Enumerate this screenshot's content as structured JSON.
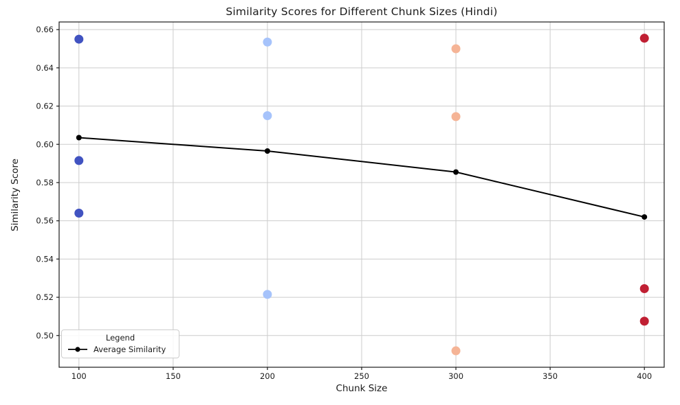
{
  "figure": {
    "background": "#ffffff"
  },
  "chart_data": {
    "type": "scatter",
    "title": "Similarity Scores for Different Chunk Sizes (Hindi)",
    "xlabel": "Chunk Size",
    "ylabel": "Similarity Score",
    "xlim": [
      89.5,
      410.5
    ],
    "ylim": [
      0.4834,
      0.664
    ],
    "xticks": [
      100,
      150,
      200,
      250,
      300,
      350,
      400
    ],
    "yticks": [
      0.5,
      0.52,
      0.54,
      0.56,
      0.58,
      0.6,
      0.62,
      0.64,
      0.66
    ],
    "grid": true,
    "grid_color": "#cccccc",
    "spine_color": "#1a1a1a",
    "scatter_groups": [
      {
        "name": "chunk-size-100",
        "chunk_size": 100,
        "color": "#4153c1",
        "values": [
          0.655,
          0.5915,
          0.564
        ]
      },
      {
        "name": "chunk-size-200",
        "chunk_size": 200,
        "color": "#a6c3fb",
        "values": [
          0.6535,
          0.615,
          0.5215
        ]
      },
      {
        "name": "chunk-size-300",
        "chunk_size": 300,
        "color": "#f5b496",
        "values": [
          0.65,
          0.6145,
          0.492
        ]
      },
      {
        "name": "chunk-size-400",
        "chunk_size": 400,
        "color": "#c01f33",
        "values": [
          0.6555,
          0.5245,
          0.5075
        ]
      }
    ],
    "line_series": {
      "name": "Average Similarity",
      "color": "#000000",
      "x": [
        100,
        200,
        300,
        400
      ],
      "values": [
        0.6035,
        0.5965,
        0.5855,
        0.562
      ]
    },
    "legend": {
      "title": "Legend",
      "entries": [
        "Average Similarity"
      ],
      "position": "lower left"
    }
  }
}
